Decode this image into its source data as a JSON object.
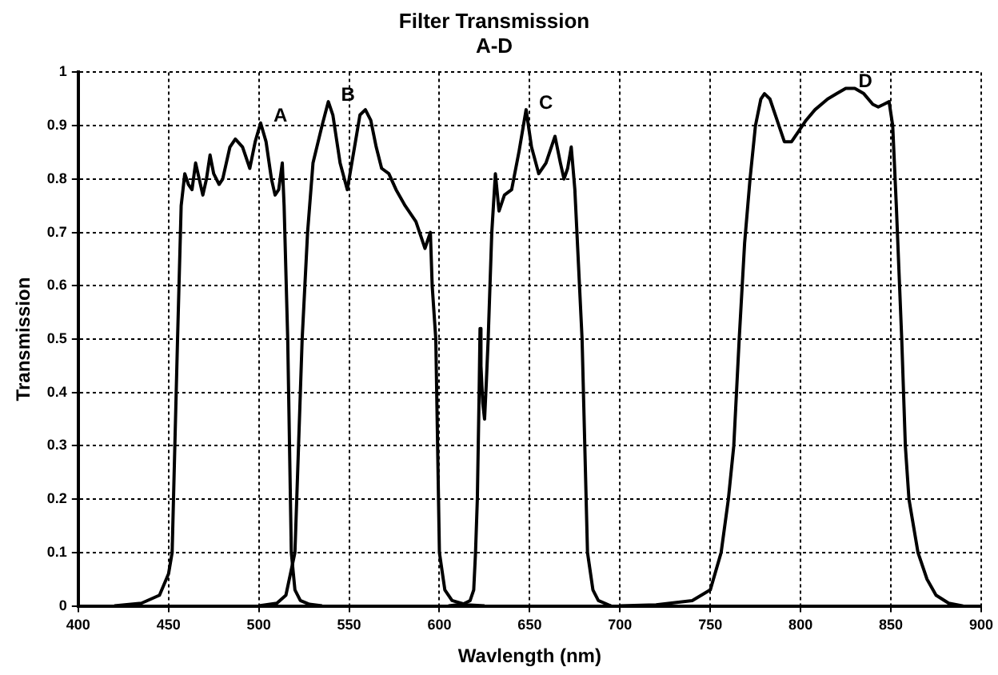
{
  "chart_data": {
    "type": "line",
    "title": "Filter Transmission",
    "subtitle": "A-D",
    "xlabel": "Wavlength (nm)",
    "ylabel": "Transmission",
    "xlim": [
      400,
      900
    ],
    "xticks": [
      400,
      450,
      500,
      550,
      600,
      650,
      700,
      750,
      800,
      850,
      900
    ],
    "ylim": [
      0,
      1
    ],
    "yticks": [
      0,
      0.1,
      0.2,
      0.3,
      0.4,
      0.5,
      0.6,
      0.7,
      0.8,
      0.9,
      1
    ],
    "grid": true,
    "legend": false,
    "marker": "none",
    "line_style": "solid",
    "series": [
      {
        "name": "A",
        "color": "#000000",
        "x": [
          420,
          435,
          445,
          450,
          452,
          455,
          457,
          459,
          461,
          463,
          465,
          467,
          469,
          471,
          473,
          475,
          478,
          480,
          484,
          487,
          491,
          495,
          498,
          501,
          504,
          507,
          509,
          511,
          513,
          514,
          516,
          518,
          520,
          523,
          528,
          535
        ],
        "values": [
          0,
          0.005,
          0.02,
          0.06,
          0.1,
          0.5,
          0.75,
          0.81,
          0.79,
          0.78,
          0.83,
          0.8,
          0.77,
          0.8,
          0.845,
          0.81,
          0.79,
          0.8,
          0.86,
          0.875,
          0.86,
          0.82,
          0.87,
          0.905,
          0.87,
          0.8,
          0.77,
          0.78,
          0.83,
          0.75,
          0.5,
          0.1,
          0.03,
          0.01,
          0.003,
          0
        ]
      },
      {
        "name": "B",
        "color": "#000000",
        "x": [
          500,
          510,
          515,
          520,
          522,
          524,
          527,
          530,
          535,
          538.5,
          541,
          545,
          549,
          553,
          556,
          559,
          562,
          565,
          568,
          572,
          576,
          581,
          587,
          590,
          592,
          594,
          595,
          596,
          598,
          600,
          603,
          607,
          615,
          625
        ],
        "values": [
          0,
          0.005,
          0.02,
          0.1,
          0.3,
          0.5,
          0.7,
          0.83,
          0.9,
          0.945,
          0.92,
          0.83,
          0.78,
          0.86,
          0.92,
          0.93,
          0.91,
          0.86,
          0.82,
          0.81,
          0.78,
          0.75,
          0.72,
          0.69,
          0.67,
          0.69,
          0.7,
          0.6,
          0.5,
          0.1,
          0.03,
          0.01,
          0.002,
          0
        ]
      },
      {
        "name": "C",
        "color": "#000000",
        "x": [
          605,
          613,
          617,
          619,
          620,
          621,
          622,
          622.5,
          623,
          624,
          625,
          626,
          627,
          629,
          631,
          633,
          636,
          640,
          644,
          648,
          651,
          655,
          659,
          664,
          667,
          669,
          671,
          673,
          675,
          679,
          682,
          685,
          688,
          695
        ],
        "values": [
          0,
          0.003,
          0.01,
          0.03,
          0.1,
          0.2,
          0.4,
          0.52,
          0.45,
          0.38,
          0.35,
          0.42,
          0.5,
          0.7,
          0.81,
          0.74,
          0.77,
          0.78,
          0.85,
          0.93,
          0.86,
          0.81,
          0.83,
          0.88,
          0.83,
          0.8,
          0.82,
          0.86,
          0.78,
          0.5,
          0.1,
          0.03,
          0.01,
          0
        ]
      },
      {
        "name": "D",
        "color": "#000000",
        "x": [
          700,
          720,
          740,
          750,
          756,
          760,
          763,
          766,
          769,
          772,
          775,
          778,
          780,
          783,
          787,
          791,
          795,
          799,
          803,
          808,
          815,
          820,
          825,
          830,
          835,
          840,
          843,
          846,
          849,
          851,
          853,
          856,
          858,
          860,
          865,
          870,
          875,
          882,
          890
        ],
        "values": [
          0,
          0.002,
          0.01,
          0.03,
          0.1,
          0.2,
          0.3,
          0.5,
          0.68,
          0.8,
          0.9,
          0.95,
          0.96,
          0.95,
          0.91,
          0.87,
          0.87,
          0.89,
          0.91,
          0.93,
          0.95,
          0.96,
          0.97,
          0.97,
          0.96,
          0.94,
          0.935,
          0.94,
          0.945,
          0.9,
          0.75,
          0.5,
          0.3,
          0.2,
          0.1,
          0.05,
          0.02,
          0.005,
          0
        ]
      }
    ]
  }
}
